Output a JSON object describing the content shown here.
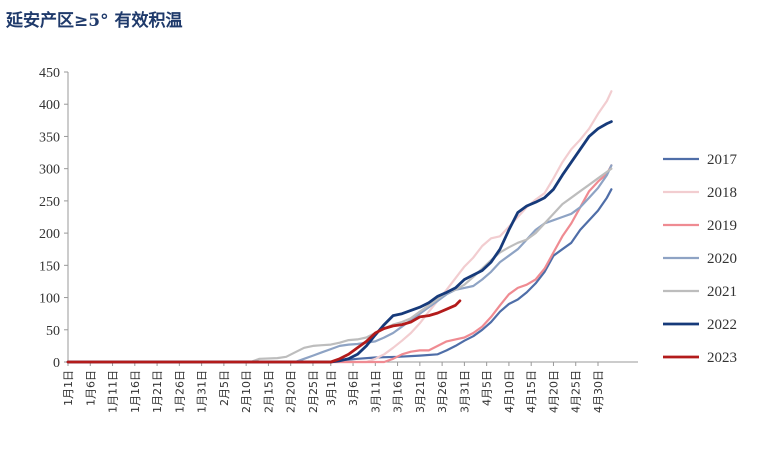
{
  "chart_data": {
    "type": "line",
    "title": "延安产区≥5° 有效积温",
    "xlabel": "",
    "ylabel": "",
    "ylim": [
      0,
      450
    ],
    "yticks": [
      0,
      50,
      100,
      150,
      200,
      250,
      300,
      350,
      400,
      450
    ],
    "grid": false,
    "legend_position": "right",
    "x_tick_labels": [
      "1月1日",
      "1月6日",
      "1月11日",
      "1月16日",
      "1月21日",
      "1月26日",
      "1月31日",
      "2月5日",
      "2月10日",
      "2月15日",
      "2月20日",
      "2月25日",
      "3月1日",
      "3月6日",
      "3月11日",
      "3月16日",
      "3月21日",
      "3月26日",
      "3月31日",
      "4月5日",
      "4月10日",
      "4月15日",
      "4月20日",
      "4月25日",
      "4月30日"
    ],
    "x_tick_days": [
      1,
      6,
      11,
      16,
      21,
      26,
      31,
      36,
      41,
      46,
      51,
      56,
      60,
      65,
      70,
      75,
      80,
      85,
      90,
      95,
      100,
      105,
      110,
      115,
      120
    ],
    "series": [
      {
        "name": "2017",
        "color": "#4f6ea8",
        "width": 2.2,
        "points": [
          [
            1,
            0
          ],
          [
            60,
            0
          ],
          [
            63,
            3
          ],
          [
            66,
            5
          ],
          [
            70,
            7
          ],
          [
            75,
            8
          ],
          [
            80,
            10
          ],
          [
            84,
            12
          ],
          [
            86,
            18
          ],
          [
            88,
            25
          ],
          [
            90,
            33
          ],
          [
            92,
            40
          ],
          [
            94,
            50
          ],
          [
            96,
            62
          ],
          [
            98,
            78
          ],
          [
            100,
            90
          ],
          [
            102,
            97
          ],
          [
            104,
            108
          ],
          [
            106,
            122
          ],
          [
            108,
            140
          ],
          [
            110,
            165
          ],
          [
            112,
            175
          ],
          [
            114,
            185
          ],
          [
            116,
            205
          ],
          [
            118,
            220
          ],
          [
            120,
            235
          ],
          [
            122,
            255
          ],
          [
            123,
            268
          ]
        ]
      },
      {
        "name": "2018",
        "color": "#f2cdd0",
        "width": 2.2,
        "points": [
          [
            1,
            0
          ],
          [
            68,
            0
          ],
          [
            70,
            5
          ],
          [
            72,
            12
          ],
          [
            74,
            22
          ],
          [
            76,
            33
          ],
          [
            78,
            45
          ],
          [
            80,
            60
          ],
          [
            82,
            78
          ],
          [
            84,
            95
          ],
          [
            86,
            112
          ],
          [
            88,
            130
          ],
          [
            90,
            148
          ],
          [
            92,
            162
          ],
          [
            94,
            180
          ],
          [
            96,
            192
          ],
          [
            98,
            195
          ],
          [
            100,
            210
          ],
          [
            102,
            225
          ],
          [
            104,
            240
          ],
          [
            106,
            252
          ],
          [
            108,
            262
          ],
          [
            110,
            285
          ],
          [
            112,
            310
          ],
          [
            114,
            330
          ],
          [
            116,
            345
          ],
          [
            118,
            362
          ],
          [
            120,
            385
          ],
          [
            122,
            405
          ],
          [
            123,
            420
          ]
        ]
      },
      {
        "name": "2019",
        "color": "#ef8b92",
        "width": 2.2,
        "points": [
          [
            1,
            0
          ],
          [
            72,
            0
          ],
          [
            74,
            5
          ],
          [
            76,
            12
          ],
          [
            78,
            16
          ],
          [
            80,
            18
          ],
          [
            82,
            18
          ],
          [
            84,
            25
          ],
          [
            86,
            32
          ],
          [
            88,
            35
          ],
          [
            90,
            38
          ],
          [
            92,
            45
          ],
          [
            94,
            55
          ],
          [
            96,
            70
          ],
          [
            98,
            88
          ],
          [
            100,
            105
          ],
          [
            102,
            115
          ],
          [
            104,
            120
          ],
          [
            106,
            128
          ],
          [
            108,
            145
          ],
          [
            110,
            170
          ],
          [
            112,
            195
          ],
          [
            114,
            215
          ],
          [
            116,
            240
          ],
          [
            118,
            265
          ],
          [
            120,
            280
          ],
          [
            122,
            292
          ],
          [
            123,
            305
          ]
        ]
      },
      {
        "name": "2020",
        "color": "#8ea3c4",
        "width": 2.2,
        "points": [
          [
            1,
            0
          ],
          [
            52,
            0
          ],
          [
            54,
            5
          ],
          [
            56,
            10
          ],
          [
            58,
            15
          ],
          [
            60,
            20
          ],
          [
            62,
            25
          ],
          [
            64,
            27
          ],
          [
            66,
            28
          ],
          [
            68,
            30
          ],
          [
            70,
            32
          ],
          [
            72,
            38
          ],
          [
            74,
            45
          ],
          [
            76,
            55
          ],
          [
            78,
            65
          ],
          [
            80,
            75
          ],
          [
            82,
            85
          ],
          [
            84,
            95
          ],
          [
            86,
            105
          ],
          [
            88,
            112
          ],
          [
            90,
            115
          ],
          [
            92,
            118
          ],
          [
            94,
            128
          ],
          [
            96,
            140
          ],
          [
            98,
            155
          ],
          [
            100,
            165
          ],
          [
            102,
            175
          ],
          [
            104,
            190
          ],
          [
            106,
            205
          ],
          [
            108,
            215
          ],
          [
            110,
            220
          ],
          [
            112,
            225
          ],
          [
            114,
            230
          ],
          [
            116,
            240
          ],
          [
            118,
            255
          ],
          [
            120,
            270
          ],
          [
            122,
            290
          ],
          [
            123,
            305
          ]
        ]
      },
      {
        "name": "2021",
        "color": "#bdbdbd",
        "width": 2.2,
        "points": [
          [
            1,
            0
          ],
          [
            42,
            0
          ],
          [
            44,
            5
          ],
          [
            48,
            6
          ],
          [
            50,
            8
          ],
          [
            52,
            15
          ],
          [
            54,
            22
          ],
          [
            56,
            25
          ],
          [
            58,
            26
          ],
          [
            60,
            27
          ],
          [
            62,
            30
          ],
          [
            64,
            34
          ],
          [
            66,
            35
          ],
          [
            68,
            38
          ],
          [
            70,
            45
          ],
          [
            72,
            52
          ],
          [
            74,
            58
          ],
          [
            76,
            62
          ],
          [
            78,
            68
          ],
          [
            80,
            78
          ],
          [
            82,
            88
          ],
          [
            84,
            98
          ],
          [
            86,
            108
          ],
          [
            88,
            112
          ],
          [
            90,
            120
          ],
          [
            92,
            132
          ],
          [
            94,
            145
          ],
          [
            96,
            158
          ],
          [
            98,
            170
          ],
          [
            100,
            178
          ],
          [
            102,
            185
          ],
          [
            104,
            190
          ],
          [
            106,
            200
          ],
          [
            108,
            215
          ],
          [
            110,
            230
          ],
          [
            112,
            245
          ],
          [
            114,
            255
          ],
          [
            116,
            265
          ],
          [
            118,
            275
          ],
          [
            120,
            285
          ],
          [
            122,
            295
          ],
          [
            123,
            300
          ]
        ]
      },
      {
        "name": "2022",
        "color": "#163a7a",
        "width": 2.8,
        "points": [
          [
            1,
            0
          ],
          [
            60,
            0
          ],
          [
            62,
            2
          ],
          [
            64,
            5
          ],
          [
            66,
            12
          ],
          [
            68,
            25
          ],
          [
            70,
            42
          ],
          [
            72,
            58
          ],
          [
            74,
            72
          ],
          [
            76,
            75
          ],
          [
            78,
            80
          ],
          [
            80,
            85
          ],
          [
            82,
            92
          ],
          [
            84,
            102
          ],
          [
            86,
            108
          ],
          [
            88,
            115
          ],
          [
            90,
            128
          ],
          [
            92,
            135
          ],
          [
            94,
            142
          ],
          [
            96,
            155
          ],
          [
            98,
            175
          ],
          [
            100,
            205
          ],
          [
            102,
            232
          ],
          [
            104,
            242
          ],
          [
            106,
            248
          ],
          [
            108,
            255
          ],
          [
            110,
            268
          ],
          [
            112,
            290
          ],
          [
            114,
            310
          ],
          [
            116,
            330
          ],
          [
            118,
            350
          ],
          [
            120,
            362
          ],
          [
            122,
            370
          ],
          [
            123,
            373
          ]
        ]
      },
      {
        "name": "2023",
        "color": "#b31b1b",
        "width": 2.8,
        "points": [
          [
            1,
            0
          ],
          [
            60,
            0
          ],
          [
            62,
            5
          ],
          [
            64,
            12
          ],
          [
            66,
            22
          ],
          [
            68,
            32
          ],
          [
            70,
            45
          ],
          [
            72,
            52
          ],
          [
            74,
            56
          ],
          [
            76,
            58
          ],
          [
            78,
            62
          ],
          [
            80,
            70
          ],
          [
            82,
            72
          ],
          [
            84,
            76
          ],
          [
            86,
            82
          ],
          [
            88,
            88
          ],
          [
            89,
            95
          ]
        ]
      }
    ]
  }
}
